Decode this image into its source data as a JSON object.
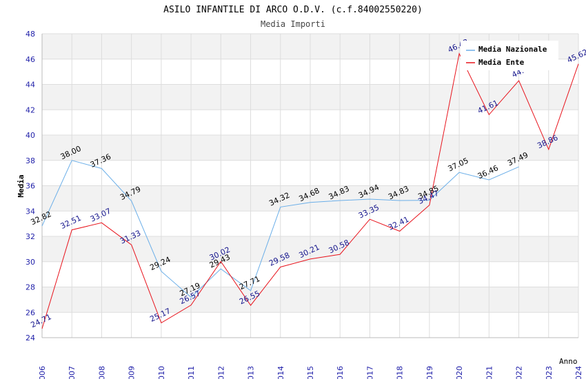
{
  "title": "ASILO INFANTILE DI ARCO O.D.V. (c.f.84002550220)",
  "subtitle": "Media Importi",
  "colors": {
    "nazionale": "#6aaee8",
    "ente": "#e8121b",
    "nazionale_label": "#000000",
    "ente_label": "#14148c",
    "band": "#f2f2f2",
    "grid": "#dddddd",
    "tick": "#2222aa"
  },
  "chart_data": {
    "type": "line",
    "title": "ASILO INFANTILE DI ARCO O.D.V. (c.f.84002550220)",
    "subtitle": "Media Importi",
    "xlabel": "Anno",
    "ylabel": "Media",
    "x": [
      2006,
      2007,
      2008,
      2009,
      2010,
      2011,
      2012,
      2013,
      2014,
      2015,
      2016,
      2017,
      2018,
      2019,
      2020,
      2021,
      2022,
      2023,
      2024
    ],
    "ylim": [
      24,
      48
    ],
    "yticks": [
      24,
      26,
      28,
      30,
      32,
      34,
      36,
      38,
      40,
      42,
      44,
      46,
      48
    ],
    "grid": true,
    "legend_position": "top-right",
    "series": [
      {
        "name": "Media Nazionale",
        "color": "#6aaee8",
        "values": [
          32.82,
          38.0,
          37.36,
          34.79,
          29.24,
          27.19,
          29.43,
          27.71,
          34.32,
          34.68,
          34.83,
          34.94,
          34.83,
          34.85,
          37.05,
          36.46,
          37.49,
          null,
          null
        ],
        "labels": [
          "32.82",
          "38.00",
          "37.36",
          "34.79",
          "29.24",
          "27.19",
          "29.43",
          "27.71",
          "34.32",
          "34.68",
          "34.83",
          "34.94",
          "34.83",
          "34.85",
          "37.05",
          "36.46",
          "37.49",
          null,
          null
        ]
      },
      {
        "name": "Media Ente",
        "color": "#e8121b",
        "values": [
          24.71,
          32.51,
          33.07,
          31.33,
          25.17,
          26.57,
          30.02,
          26.55,
          29.58,
          30.21,
          30.58,
          33.35,
          32.41,
          34.47,
          46.43,
          41.61,
          44.3,
          38.86,
          45.62
        ],
        "labels": [
          "24.71",
          "32.51",
          "33.07",
          "31.33",
          "25.17",
          "26.57",
          "30.02",
          "26.55",
          "29.58",
          "30.21",
          "30.58",
          "33.35",
          "32.41",
          "34.47",
          "46.43",
          "41.61",
          "44.",
          "38.86",
          "45.62"
        ]
      }
    ]
  }
}
